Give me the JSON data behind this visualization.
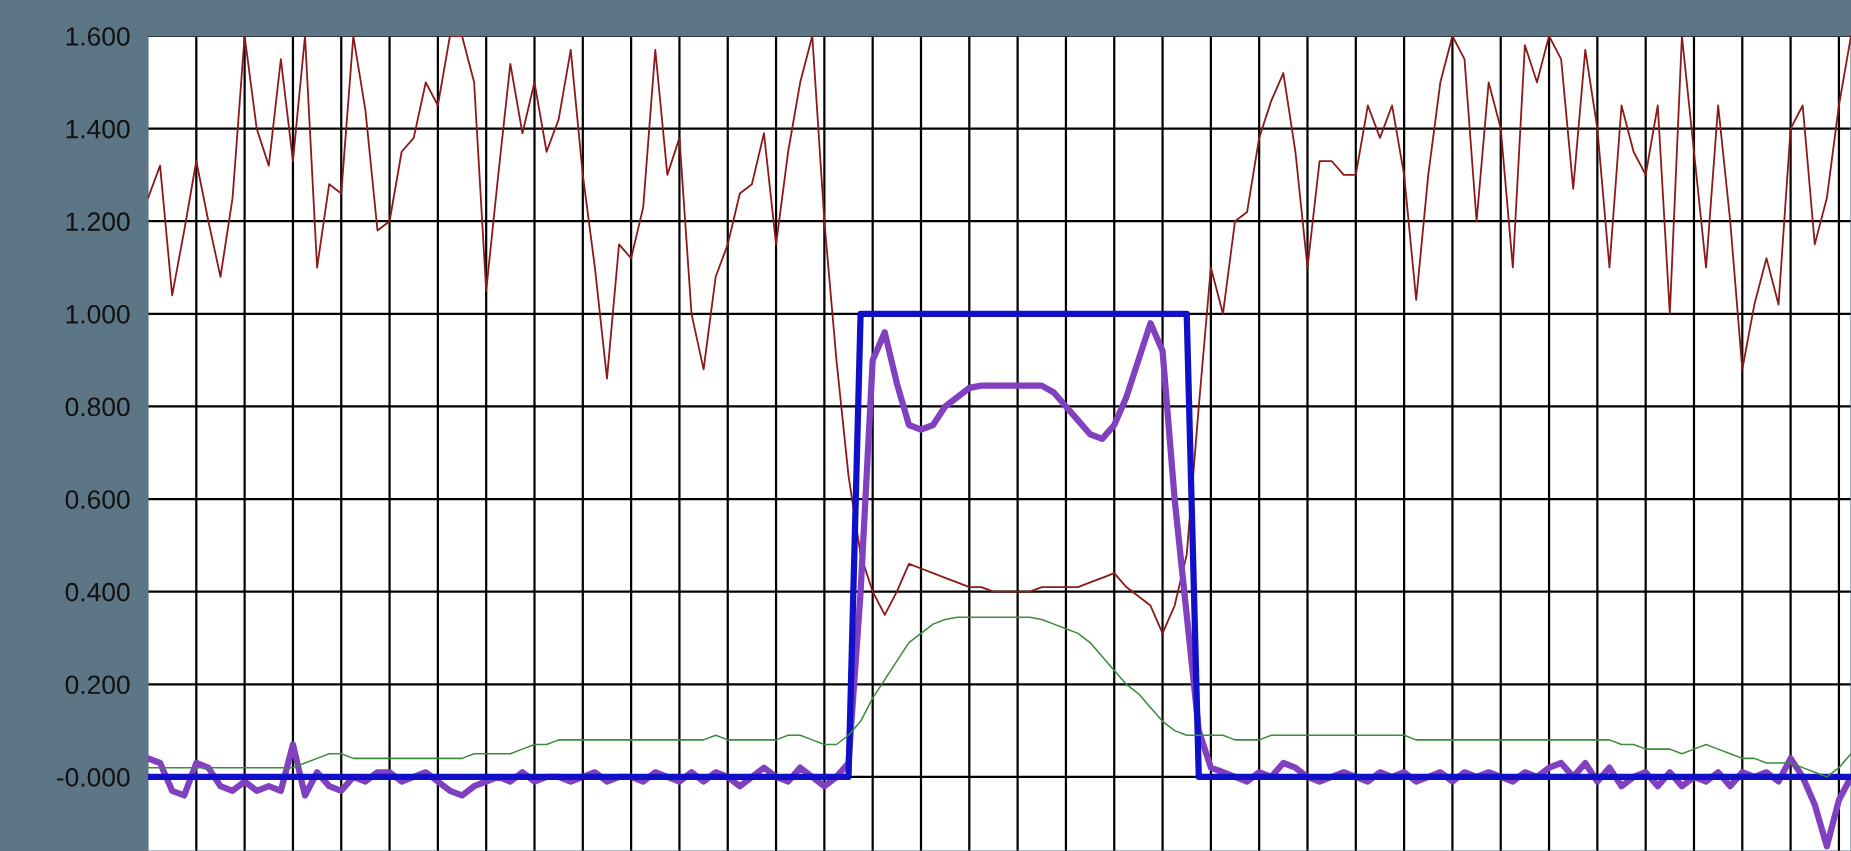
{
  "chart_data": {
    "type": "line",
    "categories": [
      null,
      null,
      null,
      null,
      null,
      null,
      null,
      null,
      null,
      null,
      null,
      null,
      null,
      null,
      null,
      null,
      null,
      null,
      null,
      null,
      null,
      null,
      null,
      null,
      null,
      null,
      null,
      null,
      null,
      null,
      null,
      null,
      null,
      null,
      null,
      null,
      null,
      null,
      null,
      null,
      null,
      null,
      null,
      null,
      null,
      null,
      null,
      null,
      null,
      null,
      null,
      null,
      null,
      null,
      null,
      null,
      null,
      null,
      null,
      null,
      null,
      null,
      null,
      null,
      null,
      null,
      null,
      null,
      null,
      null,
      null,
      null,
      null,
      null,
      null,
      null,
      null,
      null,
      null,
      null,
      null,
      null,
      null,
      null,
      null,
      null,
      null,
      null,
      null,
      null,
      null,
      null,
      null,
      null,
      null,
      null,
      null,
      null,
      null,
      null,
      null,
      null,
      null,
      null,
      null,
      null,
      null,
      null,
      null,
      null,
      null,
      null,
      null,
      null,
      null,
      null,
      null,
      null,
      null,
      null,
      null,
      null,
      null,
      null,
      null,
      null,
      null,
      null,
      null,
      null,
      null,
      null,
      null,
      null,
      null,
      null,
      null,
      null,
      null,
      null,
      null,
      null
    ],
    "series": [
      {
        "color": "#8b1a1a",
        "values": [
          1.25,
          1.32,
          1.04,
          1.18,
          1.33,
          1.2,
          1.08,
          1.25,
          1.6,
          1.4,
          1.32,
          1.55,
          1.33,
          1.6,
          1.1,
          1.28,
          1.26,
          1.6,
          1.44,
          1.18,
          1.2,
          1.35,
          1.38,
          1.5,
          1.45,
          1.6,
          1.6,
          1.5,
          1.05,
          1.3,
          1.54,
          1.39,
          1.5,
          1.35,
          1.42,
          1.57,
          1.3,
          1.1,
          0.86,
          1.15,
          1.12,
          1.23,
          1.57,
          1.3,
          1.38,
          1.0,
          0.88,
          1.08,
          1.15,
          1.26,
          1.28,
          1.39,
          1.15,
          1.35,
          1.5,
          1.6,
          1.2,
          0.9,
          0.65,
          0.48,
          0.4,
          0.35,
          0.4,
          0.46,
          0.45,
          0.44,
          0.43,
          0.42,
          0.41,
          0.41,
          0.4,
          0.4,
          0.4,
          0.4,
          0.41,
          0.41,
          0.41,
          0.41,
          0.42,
          0.43,
          0.44,
          0.41,
          0.39,
          0.37,
          0.31,
          0.37,
          0.48,
          0.8,
          1.1,
          1.0,
          1.2,
          1.22,
          1.38,
          1.46,
          1.52,
          1.35,
          1.1,
          1.33,
          1.33,
          1.3,
          1.3,
          1.45,
          1.38,
          1.45,
          1.3,
          1.03,
          1.3,
          1.5,
          1.6,
          1.55,
          1.2,
          1.5,
          1.4,
          1.1,
          1.58,
          1.5,
          1.6,
          1.55,
          1.27,
          1.57,
          1.4,
          1.1,
          1.45,
          1.35,
          1.3,
          1.45,
          1.0,
          1.6,
          1.35,
          1.1,
          1.45,
          1.2,
          0.88,
          1.02,
          1.12,
          1.02,
          1.4,
          1.45,
          1.15,
          1.25,
          1.45,
          1.6
        ]
      },
      {
        "color": "#3c8c3c",
        "values": [
          0.02,
          0.02,
          0.02,
          0.02,
          0.02,
          0.02,
          0.02,
          0.02,
          0.02,
          0.02,
          0.02,
          0.02,
          0.02,
          0.03,
          0.04,
          0.05,
          0.05,
          0.04,
          0.04,
          0.04,
          0.04,
          0.04,
          0.04,
          0.04,
          0.04,
          0.04,
          0.04,
          0.05,
          0.05,
          0.05,
          0.05,
          0.06,
          0.07,
          0.07,
          0.08,
          0.08,
          0.08,
          0.08,
          0.08,
          0.08,
          0.08,
          0.08,
          0.08,
          0.08,
          0.08,
          0.08,
          0.08,
          0.09,
          0.08,
          0.08,
          0.08,
          0.08,
          0.08,
          0.09,
          0.09,
          0.08,
          0.07,
          0.07,
          0.09,
          0.12,
          0.17,
          0.21,
          0.25,
          0.29,
          0.31,
          0.33,
          0.34,
          0.345,
          0.345,
          0.345,
          0.345,
          0.345,
          0.345,
          0.345,
          0.34,
          0.33,
          0.32,
          0.31,
          0.29,
          0.26,
          0.23,
          0.2,
          0.18,
          0.15,
          0.12,
          0.1,
          0.09,
          0.09,
          0.09,
          0.09,
          0.08,
          0.08,
          0.08,
          0.09,
          0.09,
          0.09,
          0.09,
          0.09,
          0.09,
          0.09,
          0.09,
          0.09,
          0.09,
          0.09,
          0.09,
          0.08,
          0.08,
          0.08,
          0.08,
          0.08,
          0.08,
          0.08,
          0.08,
          0.08,
          0.08,
          0.08,
          0.08,
          0.08,
          0.08,
          0.08,
          0.08,
          0.08,
          0.07,
          0.07,
          0.06,
          0.06,
          0.06,
          0.05,
          0.06,
          0.07,
          0.06,
          0.05,
          0.04,
          0.04,
          0.03,
          0.03,
          0.03,
          0.02,
          0.01,
          0.0,
          0.02,
          0.05
        ]
      },
      {
        "color": "#8040c0",
        "values": [
          0.04,
          0.03,
          -0.03,
          -0.04,
          0.03,
          0.02,
          -0.02,
          -0.03,
          -0.01,
          -0.03,
          -0.02,
          -0.03,
          0.07,
          -0.04,
          0.01,
          -0.02,
          -0.03,
          0.0,
          -0.01,
          0.01,
          0.01,
          -0.01,
          0.0,
          0.01,
          -0.01,
          -0.03,
          -0.04,
          -0.02,
          -0.01,
          0.0,
          -0.01,
          0.01,
          -0.01,
          0.0,
          0.0,
          -0.01,
          0.0,
          0.01,
          -0.01,
          0.0,
          0.0,
          -0.01,
          0.01,
          0.0,
          -0.01,
          0.01,
          -0.01,
          0.01,
          0.0,
          -0.02,
          0.0,
          0.02,
          0.0,
          -0.01,
          0.02,
          0.0,
          -0.02,
          0.0,
          0.03,
          0.4,
          0.9,
          0.96,
          0.85,
          0.76,
          0.75,
          0.76,
          0.8,
          0.82,
          0.84,
          0.845,
          0.845,
          0.845,
          0.845,
          0.845,
          0.845,
          0.83,
          0.8,
          0.77,
          0.74,
          0.73,
          0.76,
          0.82,
          0.9,
          0.98,
          0.92,
          0.6,
          0.35,
          0.1,
          0.02,
          0.01,
          0.0,
          -0.01,
          0.01,
          0.0,
          0.03,
          0.02,
          0.0,
          -0.01,
          0.0,
          0.01,
          0.0,
          -0.01,
          0.01,
          0.0,
          0.01,
          -0.01,
          0.0,
          0.01,
          -0.01,
          0.01,
          0.0,
          0.01,
          0.0,
          -0.01,
          0.01,
          0.0,
          0.02,
          0.03,
          0.0,
          0.03,
          -0.01,
          0.02,
          -0.02,
          0.0,
          0.01,
          -0.02,
          0.01,
          -0.02,
          0.0,
          -0.01,
          0.01,
          -0.02,
          0.01,
          0.0,
          0.01,
          -0.01,
          0.04,
          0.0,
          -0.06,
          -0.15,
          -0.05,
          0.0
        ]
      },
      {
        "color": "#1010c8",
        "values": [
          0,
          0,
          0,
          0,
          0,
          0,
          0,
          0,
          0,
          0,
          0,
          0,
          0,
          0,
          0,
          0,
          0,
          0,
          0,
          0,
          0,
          0,
          0,
          0,
          0,
          0,
          0,
          0,
          0,
          0,
          0,
          0,
          0,
          0,
          0,
          0,
          0,
          0,
          0,
          0,
          0,
          0,
          0,
          0,
          0,
          0,
          0,
          0,
          0,
          0,
          0,
          0,
          0,
          0,
          0,
          0,
          0,
          0,
          0,
          1,
          1,
          1,
          1,
          1,
          1,
          1,
          1,
          1,
          1,
          1,
          1,
          1,
          1,
          1,
          1,
          1,
          1,
          1,
          1,
          1,
          1,
          1,
          1,
          1,
          1,
          1,
          1,
          0,
          0,
          0,
          0,
          0,
          0,
          0,
          0,
          0,
          0,
          0,
          0,
          0,
          0,
          0,
          0,
          0,
          0,
          0,
          0,
          0,
          0,
          0,
          0,
          0,
          0,
          0,
          0,
          0,
          0,
          0,
          0,
          0,
          0,
          0,
          0,
          0,
          0,
          0,
          0,
          0,
          0,
          0,
          0,
          0,
          0,
          0,
          0,
          0,
          0,
          0,
          0,
          0,
          0,
          0
        ]
      }
    ],
    "ylim": [
      -0.16,
      1.6
    ],
    "yticks": [
      {
        "value": 0,
        "label": "-0.000"
      },
      {
        "value": 0.2,
        "label": "0.200"
      },
      {
        "value": 0.4,
        "label": "0.400"
      },
      {
        "value": 0.6,
        "label": "0.600"
      },
      {
        "value": 0.8,
        "label": "0.800"
      },
      {
        "value": 1.0,
        "label": "1.000"
      },
      {
        "value": 1.2,
        "label": "1.200"
      },
      {
        "value": 1.4,
        "label": "1.400"
      },
      {
        "value": 1.6,
        "label": "1.600"
      }
    ],
    "tick_labels": "y",
    "grid": true,
    "legend": false
  }
}
